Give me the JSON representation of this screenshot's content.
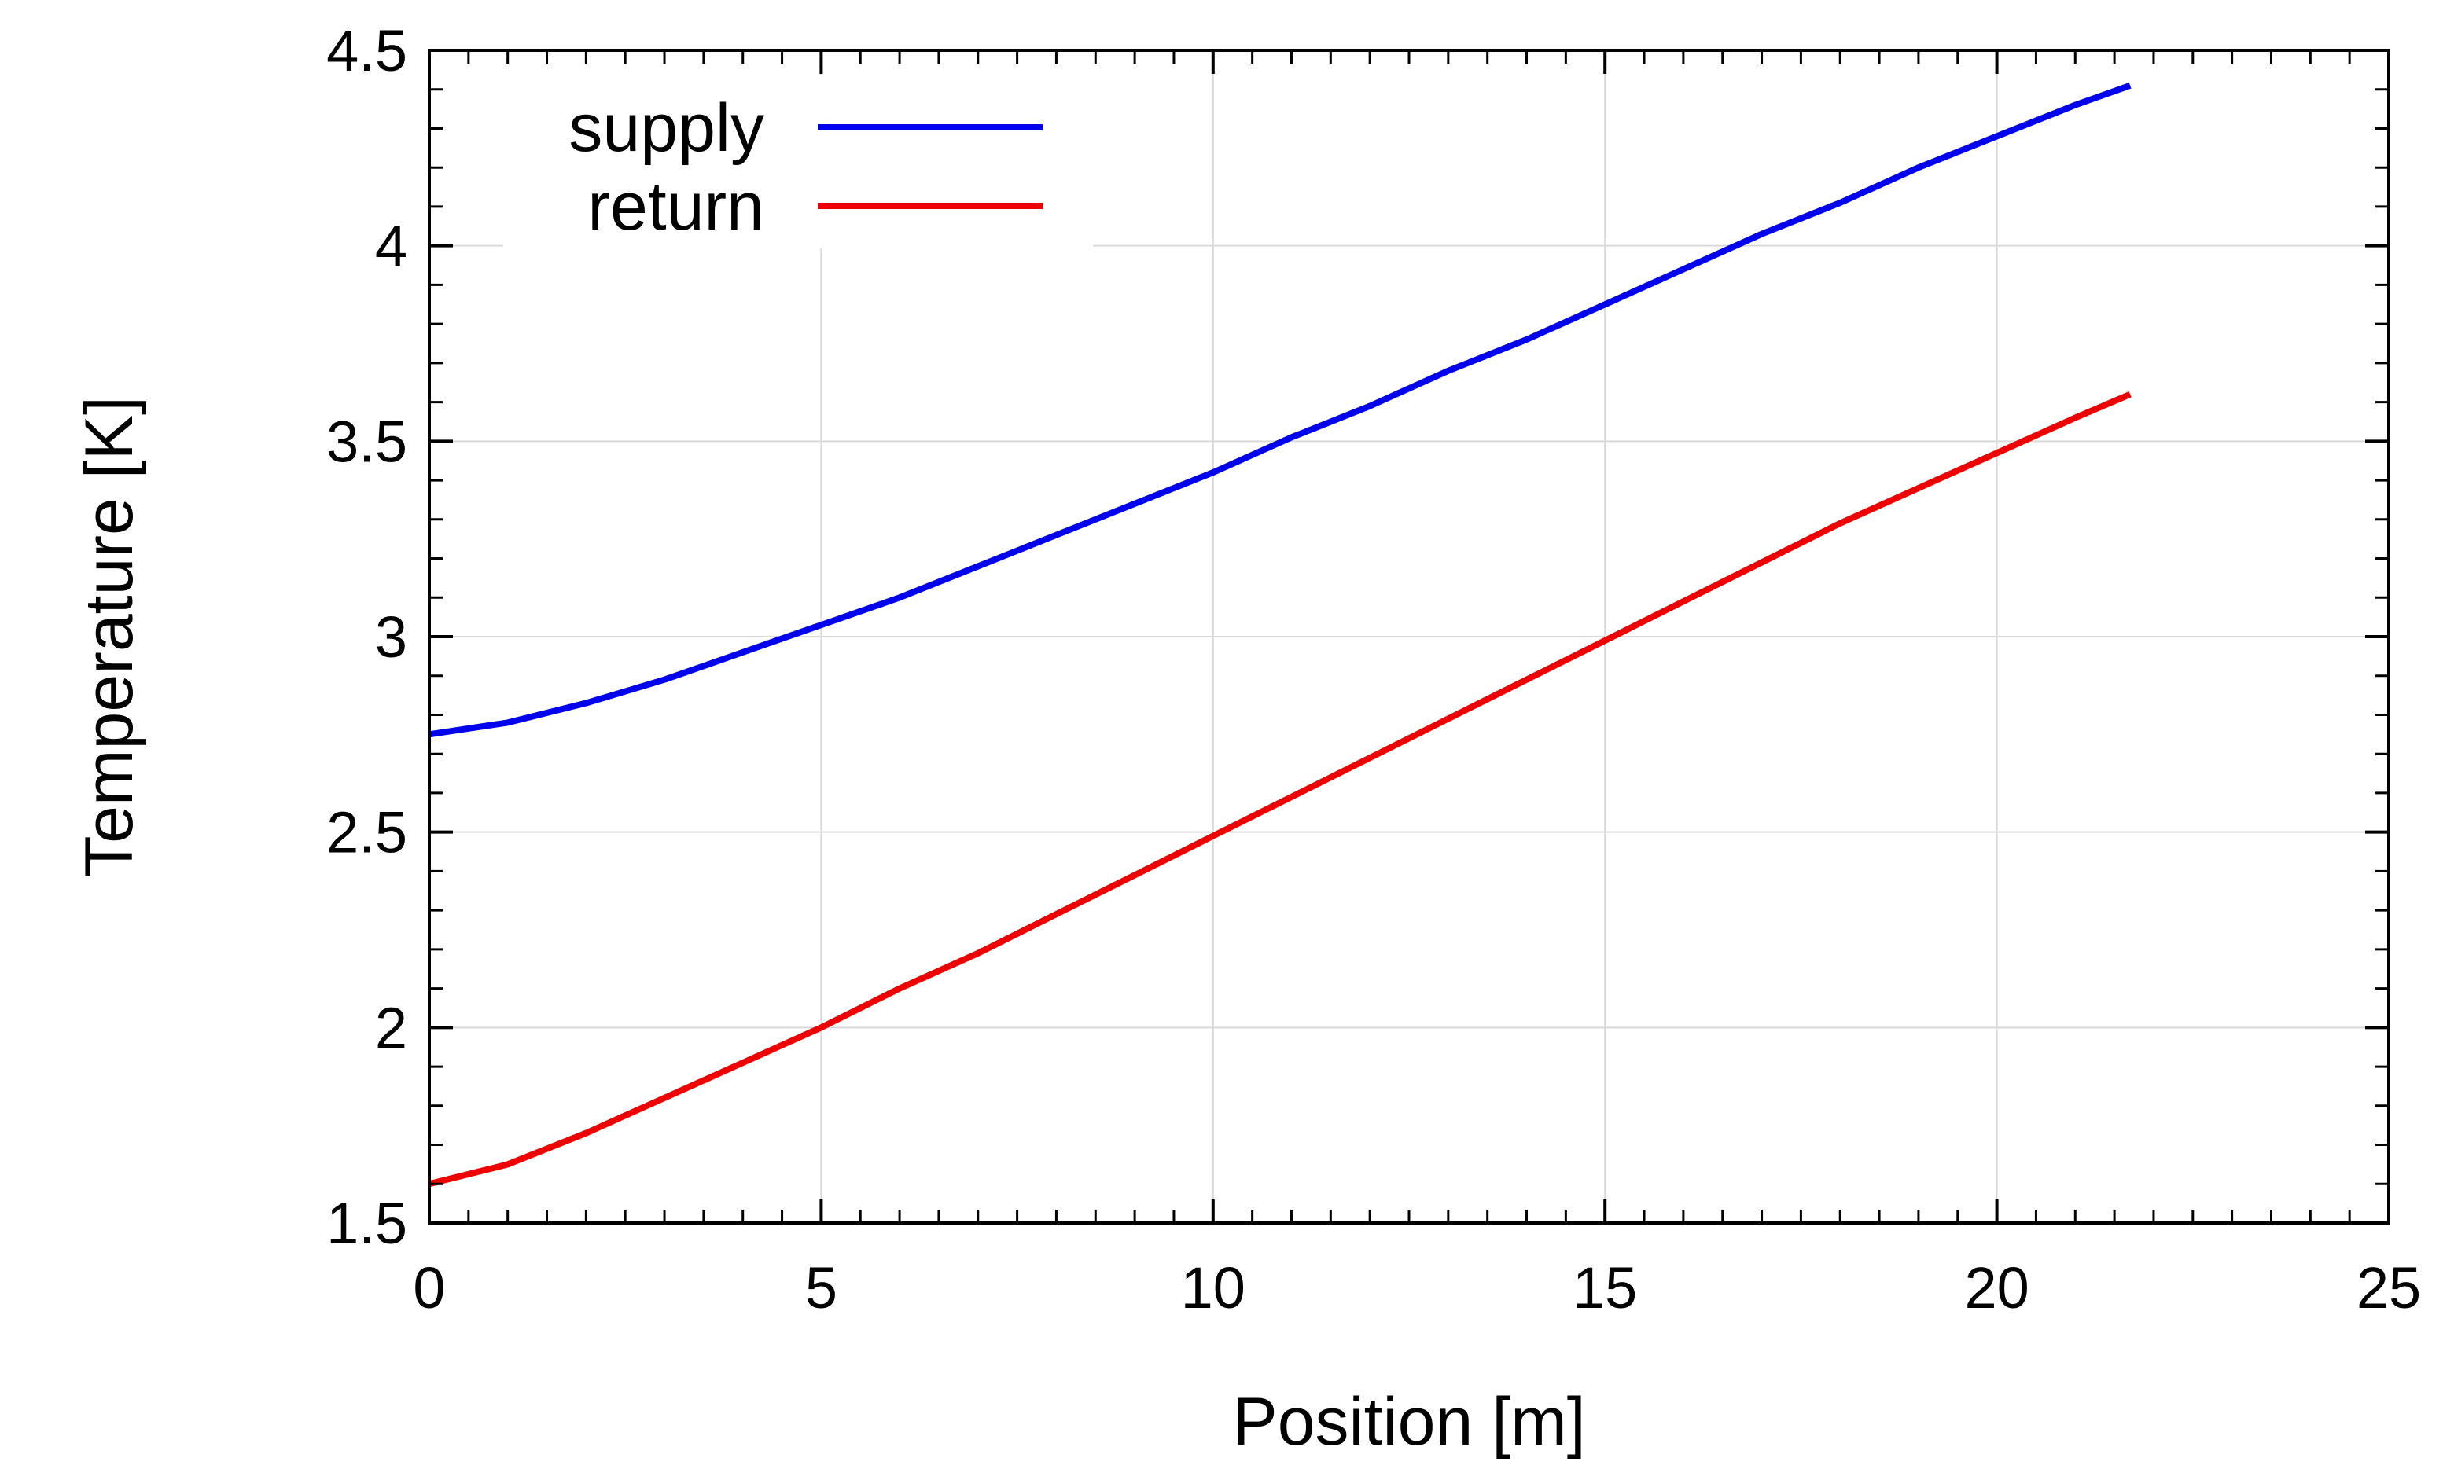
{
  "chart_data": {
    "type": "line",
    "title": "",
    "xlabel": "Position [m]",
    "ylabel": "Temperature [K]",
    "xlim": [
      0,
      25
    ],
    "ylim": [
      1.5,
      4.5
    ],
    "xticks": [
      0,
      5,
      10,
      15,
      20,
      25
    ],
    "yticks": [
      1.5,
      2,
      2.5,
      3,
      3.5,
      4,
      4.5
    ],
    "xtick_labels": [
      "0",
      "5",
      "10",
      "15",
      "20",
      "25"
    ],
    "ytick_labels": [
      "1.5",
      "2",
      "2.5",
      "3",
      "3.5",
      "4",
      "4.5"
    ],
    "grid": true,
    "legend_position": "top-left",
    "series": [
      {
        "name": "supply",
        "color": "#0000ee",
        "x": [
          0,
          1,
          2,
          3,
          4,
          5,
          6,
          7,
          8,
          9,
          10,
          11,
          12,
          13,
          14,
          15,
          16,
          17,
          18,
          19,
          20,
          21,
          21.7
        ],
        "y": [
          2.75,
          2.78,
          2.83,
          2.89,
          2.96,
          3.03,
          3.1,
          3.18,
          3.26,
          3.34,
          3.42,
          3.51,
          3.59,
          3.68,
          3.76,
          3.85,
          3.94,
          4.03,
          4.11,
          4.2,
          4.28,
          4.36,
          4.41
        ]
      },
      {
        "name": "return",
        "color": "#ee0000",
        "x": [
          0,
          1,
          2,
          3,
          4,
          5,
          6,
          7,
          8,
          9,
          10,
          11,
          12,
          13,
          14,
          15,
          16,
          17,
          18,
          19,
          20,
          21,
          21.7
        ],
        "y": [
          1.6,
          1.65,
          1.73,
          1.82,
          1.91,
          2.0,
          2.1,
          2.19,
          2.29,
          2.39,
          2.49,
          2.59,
          2.69,
          2.79,
          2.89,
          2.99,
          3.09,
          3.19,
          3.29,
          3.38,
          3.47,
          3.56,
          3.62
        ]
      }
    ]
  }
}
